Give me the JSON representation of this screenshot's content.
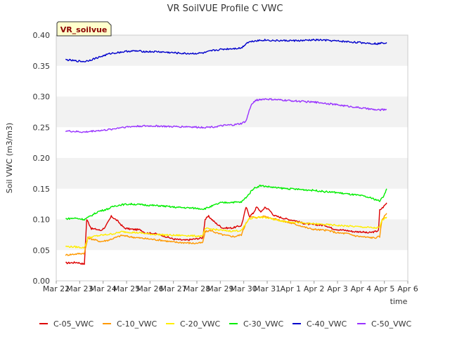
{
  "chart_data": {
    "type": "line",
    "title": "VR SoilVUE Profile C VWC",
    "xlabel": "time",
    "ylabel": "Soil VWC (m3/m3)",
    "badge": "VR_soilvue",
    "ylim": [
      0.0,
      0.4
    ],
    "yticks": [
      0.0,
      0.05,
      0.1,
      0.15,
      0.2,
      0.25,
      0.3,
      0.35,
      0.4
    ],
    "ytick_labels": [
      "0.00",
      "0.05",
      "0.10",
      "0.15",
      "0.20",
      "0.25",
      "0.30",
      "0.35",
      "0.40"
    ],
    "xlim": [
      0,
      15
    ],
    "xticks": [
      0,
      1,
      2,
      3,
      4,
      5,
      6,
      7,
      8,
      9,
      10,
      11,
      12,
      13,
      14,
      15
    ],
    "xtick_labels": [
      "Mar 22",
      "Mar 23",
      "Mar 24",
      "Mar 25",
      "Mar 26",
      "Mar 27",
      "Mar 28",
      "Mar 29",
      "Mar 30",
      "Mar 31",
      "Apr 1",
      "Apr 2",
      "Apr 3",
      "Apr 4",
      "Apr 5",
      "Apr 6"
    ],
    "grid_bands": true,
    "legend_position": "bottom",
    "series": [
      {
        "name": "C-05_VWC",
        "color": "#dd0000",
        "points": [
          [
            0.4,
            0.029
          ],
          [
            0.9,
            0.03
          ],
          [
            1.2,
            0.027
          ],
          [
            1.3,
            0.1
          ],
          [
            1.5,
            0.085
          ],
          [
            1.7,
            0.084
          ],
          [
            1.9,
            0.082
          ],
          [
            2.1,
            0.088
          ],
          [
            2.35,
            0.105
          ],
          [
            2.6,
            0.098
          ],
          [
            2.9,
            0.086
          ],
          [
            3.2,
            0.084
          ],
          [
            3.6,
            0.083
          ],
          [
            3.8,
            0.078
          ],
          [
            4.2,
            0.077
          ],
          [
            4.6,
            0.073
          ],
          [
            5.0,
            0.068
          ],
          [
            5.5,
            0.066
          ],
          [
            5.9,
            0.068
          ],
          [
            6.25,
            0.07
          ],
          [
            6.35,
            0.1
          ],
          [
            6.5,
            0.105
          ],
          [
            6.8,
            0.094
          ],
          [
            7.1,
            0.086
          ],
          [
            7.5,
            0.086
          ],
          [
            7.9,
            0.09
          ],
          [
            8.1,
            0.12
          ],
          [
            8.25,
            0.105
          ],
          [
            8.4,
            0.11
          ],
          [
            8.55,
            0.12
          ],
          [
            8.75,
            0.112
          ],
          [
            8.9,
            0.12
          ],
          [
            9.1,
            0.115
          ],
          [
            9.3,
            0.106
          ],
          [
            9.6,
            0.103
          ],
          [
            9.9,
            0.1
          ],
          [
            10.2,
            0.098
          ],
          [
            10.5,
            0.094
          ],
          [
            10.8,
            0.092
          ],
          [
            11.2,
            0.091
          ],
          [
            11.5,
            0.09
          ],
          [
            11.8,
            0.085
          ],
          [
            12.1,
            0.083
          ],
          [
            12.4,
            0.082
          ],
          [
            12.7,
            0.08
          ],
          [
            13.0,
            0.08
          ],
          [
            13.3,
            0.078
          ],
          [
            13.6,
            0.08
          ],
          [
            13.75,
            0.082
          ],
          [
            13.8,
            0.115
          ],
          [
            13.95,
            0.12
          ],
          [
            14.1,
            0.127
          ]
        ]
      },
      {
        "name": "C-10_VWC",
        "color": "#ff9900",
        "points": [
          [
            0.4,
            0.042
          ],
          [
            0.9,
            0.044
          ],
          [
            1.2,
            0.045
          ],
          [
            1.35,
            0.07
          ],
          [
            1.6,
            0.067
          ],
          [
            1.9,
            0.064
          ],
          [
            2.2,
            0.066
          ],
          [
            2.5,
            0.07
          ],
          [
            2.8,
            0.074
          ],
          [
            3.1,
            0.072
          ],
          [
            3.5,
            0.07
          ],
          [
            4.0,
            0.068
          ],
          [
            4.5,
            0.066
          ],
          [
            5.0,
            0.063
          ],
          [
            5.5,
            0.062
          ],
          [
            5.9,
            0.061
          ],
          [
            6.25,
            0.062
          ],
          [
            6.35,
            0.08
          ],
          [
            6.6,
            0.082
          ],
          [
            6.9,
            0.077
          ],
          [
            7.2,
            0.074
          ],
          [
            7.6,
            0.072
          ],
          [
            7.9,
            0.075
          ],
          [
            8.1,
            0.095
          ],
          [
            8.3,
            0.104
          ],
          [
            8.6,
            0.103
          ],
          [
            8.9,
            0.105
          ],
          [
            9.2,
            0.102
          ],
          [
            9.6,
            0.098
          ],
          [
            10.0,
            0.094
          ],
          [
            10.4,
            0.09
          ],
          [
            10.8,
            0.085
          ],
          [
            11.2,
            0.083
          ],
          [
            11.6,
            0.082
          ],
          [
            12.0,
            0.078
          ],
          [
            12.4,
            0.077
          ],
          [
            12.8,
            0.073
          ],
          [
            13.2,
            0.071
          ],
          [
            13.6,
            0.07
          ],
          [
            13.8,
            0.072
          ],
          [
            13.9,
            0.1
          ],
          [
            14.1,
            0.11
          ]
        ]
      },
      {
        "name": "C-20_VWC",
        "color": "#ffee00",
        "points": [
          [
            0.4,
            0.056
          ],
          [
            0.9,
            0.055
          ],
          [
            1.2,
            0.054
          ],
          [
            1.35,
            0.07
          ],
          [
            1.7,
            0.073
          ],
          [
            2.1,
            0.075
          ],
          [
            2.5,
            0.077
          ],
          [
            2.8,
            0.08
          ],
          [
            3.2,
            0.079
          ],
          [
            3.6,
            0.078
          ],
          [
            4.0,
            0.076
          ],
          [
            4.5,
            0.075
          ],
          [
            5.0,
            0.074
          ],
          [
            5.5,
            0.074
          ],
          [
            5.9,
            0.073
          ],
          [
            6.25,
            0.073
          ],
          [
            6.35,
            0.085
          ],
          [
            6.7,
            0.084
          ],
          [
            7.1,
            0.082
          ],
          [
            7.5,
            0.081
          ],
          [
            7.9,
            0.082
          ],
          [
            8.05,
            0.09
          ],
          [
            8.2,
            0.1
          ],
          [
            8.5,
            0.104
          ],
          [
            8.9,
            0.103
          ],
          [
            9.3,
            0.1
          ],
          [
            9.7,
            0.097
          ],
          [
            10.1,
            0.096
          ],
          [
            10.5,
            0.094
          ],
          [
            10.9,
            0.093
          ],
          [
            11.3,
            0.092
          ],
          [
            11.7,
            0.091
          ],
          [
            12.1,
            0.09
          ],
          [
            12.5,
            0.089
          ],
          [
            12.9,
            0.088
          ],
          [
            13.3,
            0.087
          ],
          [
            13.6,
            0.086
          ],
          [
            13.8,
            0.087
          ],
          [
            13.9,
            0.098
          ],
          [
            14.1,
            0.104
          ]
        ]
      },
      {
        "name": "C-30_VWC",
        "color": "#00ee00",
        "points": [
          [
            0.4,
            0.101
          ],
          [
            0.8,
            0.102
          ],
          [
            1.2,
            0.1
          ],
          [
            1.4,
            0.104
          ],
          [
            1.8,
            0.113
          ],
          [
            2.2,
            0.117
          ],
          [
            2.5,
            0.122
          ],
          [
            2.8,
            0.124
          ],
          [
            3.2,
            0.125
          ],
          [
            3.6,
            0.124
          ],
          [
            4.0,
            0.123
          ],
          [
            4.5,
            0.122
          ],
          [
            5.0,
            0.12
          ],
          [
            5.5,
            0.119
          ],
          [
            6.0,
            0.118
          ],
          [
            6.3,
            0.117
          ],
          [
            6.6,
            0.121
          ],
          [
            7.0,
            0.127
          ],
          [
            7.5,
            0.128
          ],
          [
            7.9,
            0.128
          ],
          [
            8.2,
            0.14
          ],
          [
            8.4,
            0.15
          ],
          [
            8.7,
            0.155
          ],
          [
            9.1,
            0.153
          ],
          [
            9.5,
            0.151
          ],
          [
            9.9,
            0.15
          ],
          [
            10.3,
            0.149
          ],
          [
            10.7,
            0.148
          ],
          [
            11.1,
            0.147
          ],
          [
            11.5,
            0.145
          ],
          [
            11.9,
            0.144
          ],
          [
            12.3,
            0.142
          ],
          [
            12.7,
            0.14
          ],
          [
            13.1,
            0.138
          ],
          [
            13.5,
            0.134
          ],
          [
            13.8,
            0.13
          ],
          [
            13.95,
            0.137
          ],
          [
            14.1,
            0.15
          ]
        ]
      },
      {
        "name": "C-40_VWC",
        "color": "#0000cc",
        "points": [
          [
            0.4,
            0.36
          ],
          [
            0.8,
            0.358
          ],
          [
            1.2,
            0.357
          ],
          [
            1.5,
            0.36
          ],
          [
            1.9,
            0.365
          ],
          [
            2.3,
            0.37
          ],
          [
            2.7,
            0.372
          ],
          [
            3.1,
            0.374
          ],
          [
            3.5,
            0.374
          ],
          [
            3.9,
            0.373
          ],
          [
            4.3,
            0.373
          ],
          [
            4.7,
            0.372
          ],
          [
            5.1,
            0.371
          ],
          [
            5.5,
            0.37
          ],
          [
            5.9,
            0.37
          ],
          [
            6.3,
            0.371
          ],
          [
            6.7,
            0.375
          ],
          [
            7.1,
            0.377
          ],
          [
            7.5,
            0.378
          ],
          [
            7.9,
            0.379
          ],
          [
            8.15,
            0.388
          ],
          [
            8.5,
            0.391
          ],
          [
            8.9,
            0.392
          ],
          [
            9.3,
            0.391
          ],
          [
            9.7,
            0.391
          ],
          [
            10.1,
            0.391
          ],
          [
            10.5,
            0.391
          ],
          [
            10.9,
            0.392
          ],
          [
            11.3,
            0.392
          ],
          [
            11.7,
            0.391
          ],
          [
            12.1,
            0.39
          ],
          [
            12.5,
            0.389
          ],
          [
            12.9,
            0.388
          ],
          [
            13.3,
            0.387
          ],
          [
            13.7,
            0.386
          ],
          [
            14.1,
            0.388
          ]
        ]
      },
      {
        "name": "C-50_VWC",
        "color": "#9933ff",
        "points": [
          [
            0.4,
            0.244
          ],
          [
            0.8,
            0.243
          ],
          [
            1.2,
            0.242
          ],
          [
            1.6,
            0.244
          ],
          [
            2.0,
            0.245
          ],
          [
            2.4,
            0.247
          ],
          [
            2.8,
            0.25
          ],
          [
            3.2,
            0.251
          ],
          [
            3.6,
            0.252
          ],
          [
            4.0,
            0.252
          ],
          [
            4.4,
            0.252
          ],
          [
            4.8,
            0.251
          ],
          [
            5.2,
            0.251
          ],
          [
            5.6,
            0.251
          ],
          [
            6.0,
            0.25
          ],
          [
            6.4,
            0.25
          ],
          [
            6.8,
            0.251
          ],
          [
            7.2,
            0.253
          ],
          [
            7.6,
            0.254
          ],
          [
            7.9,
            0.256
          ],
          [
            8.1,
            0.26
          ],
          [
            8.3,
            0.285
          ],
          [
            8.5,
            0.294
          ],
          [
            8.9,
            0.296
          ],
          [
            9.3,
            0.295
          ],
          [
            9.7,
            0.294
          ],
          [
            10.1,
            0.293
          ],
          [
            10.5,
            0.292
          ],
          [
            10.9,
            0.291
          ],
          [
            11.3,
            0.29
          ],
          [
            11.7,
            0.288
          ],
          [
            12.1,
            0.286
          ],
          [
            12.5,
            0.284
          ],
          [
            12.9,
            0.282
          ],
          [
            13.3,
            0.28
          ],
          [
            13.7,
            0.278
          ],
          [
            14.1,
            0.279
          ]
        ]
      }
    ]
  }
}
